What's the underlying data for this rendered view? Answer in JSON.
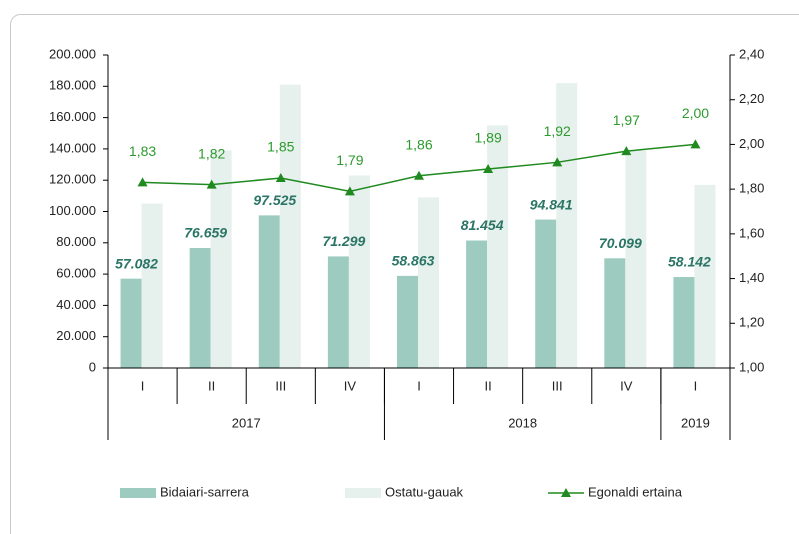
{
  "chart_data": {
    "type": "bar-line",
    "categories": [
      "I",
      "II",
      "III",
      "IV",
      "I",
      "II",
      "III",
      "IV",
      "I"
    ],
    "groups": [
      {
        "label": "2017",
        "span": 4
      },
      {
        "label": "2018",
        "span": 4
      },
      {
        "label": "2019",
        "span": 1
      }
    ],
    "series": [
      {
        "name": "Bidaiari-sarrera",
        "type": "bar",
        "color": "#9dcbbf",
        "values": [
          57082,
          76659,
          97525,
          71299,
          58863,
          81454,
          94841,
          70099,
          58142
        ],
        "value_labels": [
          "57.082",
          "76.659",
          "97.525",
          "71.299",
          "58.863",
          "81.454",
          "94.841",
          "70.099",
          "58.142"
        ]
      },
      {
        "name": "Ostatu-gauak",
        "type": "bar",
        "color": "#e6f0ec",
        "values": [
          105000,
          139000,
          181000,
          123000,
          109000,
          155000,
          182000,
          139000,
          117000
        ]
      },
      {
        "name": "Egonaldi ertaina",
        "type": "line",
        "axis": "y2",
        "color": "#1f8a1f",
        "values": [
          1.83,
          1.82,
          1.85,
          1.79,
          1.86,
          1.89,
          1.92,
          1.97,
          2.0
        ],
        "value_labels": [
          "1,83",
          "1,82",
          "1,85",
          "1,79",
          "1,86",
          "1,89",
          "1,92",
          "1,97",
          "2,00"
        ]
      }
    ],
    "ylim": [
      0,
      200000
    ],
    "yticks": [
      0,
      {
        "value": 20000,
        "label": "20.000"
      },
      {
        "value": 40000,
        "label": "40.000"
      },
      {
        "value": 60000,
        "label": "60.000"
      },
      {
        "value": 80000,
        "label": "80.000"
      },
      {
        "value": 100000,
        "label": "100.000"
      },
      {
        "value": 120000,
        "label": "120.000"
      },
      {
        "value": 140000,
        "label": "140.000"
      },
      {
        "value": 160000,
        "label": "160.000"
      },
      {
        "value": 180000,
        "label": "180.000"
      },
      {
        "value": 200000,
        "label": "200.000"
      }
    ],
    "y2lim": [
      1,
      2.4
    ],
    "y2ticks": [
      {
        "value": 1,
        "label": "1,00"
      },
      {
        "value": 1.2,
        "label": "1,20"
      },
      {
        "value": 1.4,
        "label": "1,40"
      },
      {
        "value": 1.6,
        "label": "1,60"
      },
      {
        "value": 1.8,
        "label": "1,80"
      },
      {
        "value": 2,
        "label": "2,00"
      },
      {
        "value": 2.2,
        "label": "2,20"
      },
      {
        "value": 2.4,
        "label": "2,40"
      }
    ],
    "legend": "bottom"
  }
}
